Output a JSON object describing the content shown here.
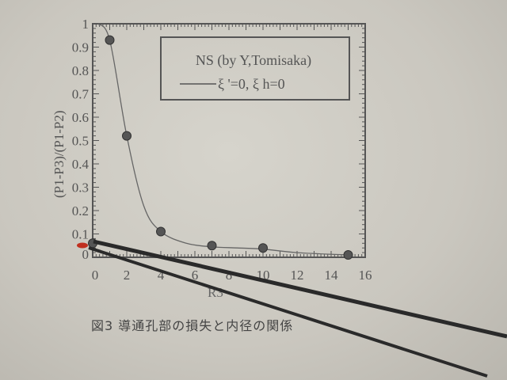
{
  "chart_data": {
    "type": "scatter",
    "xlabel": "R3",
    "ylabel": "(P1-P3)/(P1-P2)",
    "xlim": [
      0,
      16
    ],
    "ylim": [
      0,
      1
    ],
    "xticks": [
      "0",
      "2",
      "4",
      "6",
      "8",
      "10",
      "12",
      "14",
      "16"
    ],
    "yticks": [
      "0",
      "0.1",
      "0.2",
      "0.3",
      "0.4",
      "0.5",
      "0.6",
      "0.7",
      "0.8",
      "0.9",
      "1"
    ],
    "legend": {
      "title": "NS (by Y,Tomisaka)",
      "line_label": "ξ '=0, ξ h=0",
      "placement": "top-right"
    },
    "points": [
      {
        "x": 0,
        "y": 0.06
      },
      {
        "x": 1,
        "y": 0.93
      },
      {
        "x": 2,
        "y": 0.52
      },
      {
        "x": 4,
        "y": 0.11
      },
      {
        "x": 7,
        "y": 0.05
      },
      {
        "x": 10,
        "y": 0.04
      },
      {
        "x": 15,
        "y": 0.01
      }
    ],
    "curve": [
      [
        0.3,
        1.0
      ],
      [
        1,
        0.93
      ],
      [
        2,
        0.52
      ],
      [
        3,
        0.22
      ],
      [
        4,
        0.11
      ],
      [
        5.5,
        0.06
      ],
      [
        7,
        0.045
      ],
      [
        8.5,
        0.04
      ],
      [
        10,
        0.035
      ],
      [
        12,
        0.02
      ],
      [
        15,
        0.01
      ]
    ],
    "grid": false,
    "caption": "図3 導通孔部の損失と内径の関係"
  }
}
